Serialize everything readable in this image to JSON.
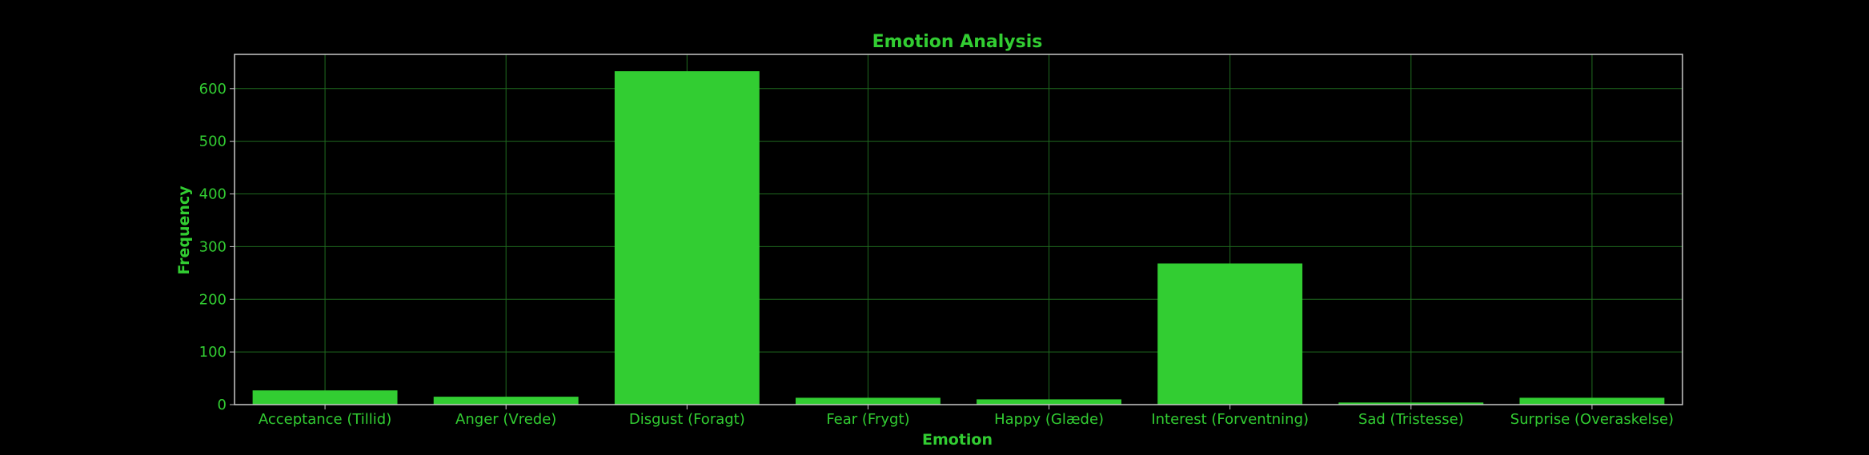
{
  "chart_data": {
    "type": "bar",
    "title": "Emotion Analysis",
    "xlabel": "Emotion",
    "ylabel": "Frequency",
    "categories": [
      "Acceptance (Tillid)",
      "Anger (Vrede)",
      "Disgust (Foragt)",
      "Fear (Frygt)",
      "Happy (Glæde)",
      "Interest (Forventning)",
      "Sad (Tristesse)",
      "Surprise (Overaskelse)"
    ],
    "values": [
      27,
      15,
      633,
      13,
      10,
      268,
      4,
      13
    ],
    "ylim": [
      0,
      665
    ],
    "yticks": [
      0,
      100,
      200,
      300,
      400,
      500,
      600
    ],
    "ytick_labels": [
      "0",
      "100",
      "200",
      "300",
      "400",
      "500",
      "600"
    ],
    "grid": true,
    "colors": {
      "background": "#000000",
      "bar": "#32cd32",
      "text": "#32cd32",
      "grid": "#1f6a1f",
      "frame": "#c8c8c8"
    }
  }
}
